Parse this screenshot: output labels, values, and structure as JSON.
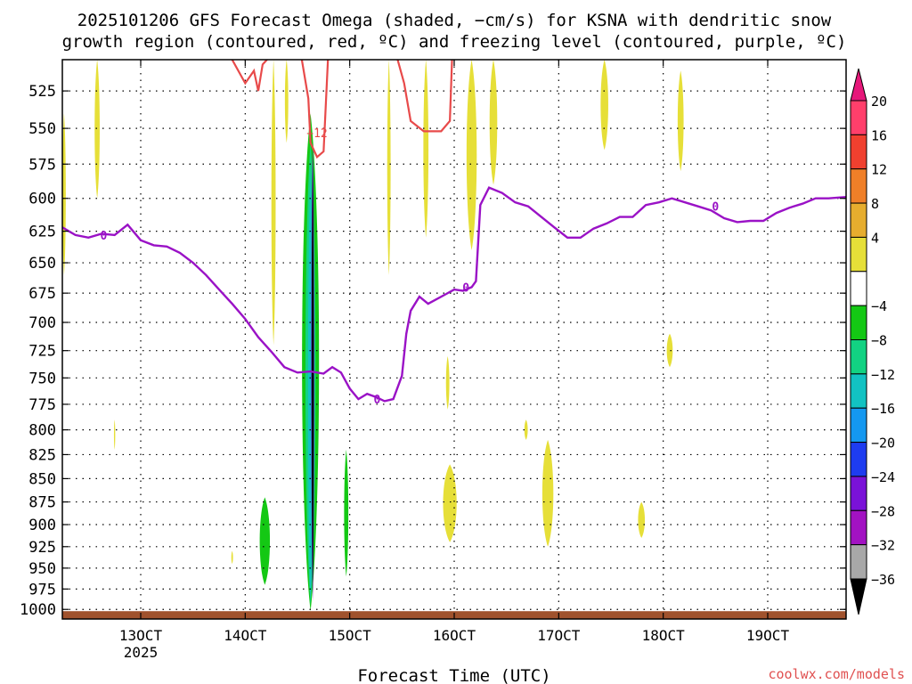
{
  "chart_data": {
    "type": "heatmap",
    "title_line1": "2025101206 GFS Forecast Omega (shaded, −cm/s) for KSNA with dendritic snow",
    "title_line2": "growth region (contoured, red, ºC) and freezing level (contoured, purple, ºC)",
    "xlabel": "Forecast Time (UTC)",
    "credit": "coolwx.com/models",
    "x_ticks": [
      {
        "label": "13OCT",
        "sub": "2025",
        "hour": 18
      },
      {
        "label": "14OCT",
        "sub": "",
        "hour": 42
      },
      {
        "label": "15OCT",
        "sub": "",
        "hour": 66
      },
      {
        "label": "16OCT",
        "sub": "",
        "hour": 90
      },
      {
        "label": "17OCT",
        "sub": "",
        "hour": 114
      },
      {
        "label": "18OCT",
        "sub": "",
        "hour": 138
      },
      {
        "label": "19OCT",
        "sub": "",
        "hour": 162
      }
    ],
    "x_range_hours": [
      0,
      180
    ],
    "y_ticks": [
      525,
      550,
      575,
      600,
      625,
      650,
      675,
      700,
      725,
      750,
      775,
      800,
      825,
      850,
      875,
      900,
      925,
      950,
      975,
      1000
    ],
    "y_range_hpa": [
      505,
      1012
    ],
    "y_scale": "log-pressure",
    "grid": true,
    "colorbar": {
      "labels": [
        "20",
        "16",
        "12",
        "8",
        "4",
        "−4",
        "−8",
        "−12",
        "−16",
        "−20",
        "−24",
        "−28",
        "−32",
        "−36"
      ],
      "colors": [
        "#ff3f6b",
        "#f0402f",
        "#ef7f28",
        "#e6ad2e",
        "#e6df38",
        "#ffffff",
        "#14c814",
        "#12d282",
        "#12c2c2",
        "#1498f0",
        "#1e3cf0",
        "#7a12d8",
        "#a212c2",
        "#a8a8a8"
      ],
      "top_arrow": "#e6187a",
      "bottom_arrow": "#000000"
    },
    "freezing_level_label": "0",
    "dgz_label": "−12",
    "freezing_level_0C": [
      [
        0,
        622
      ],
      [
        3,
        628
      ],
      [
        6,
        630
      ],
      [
        9,
        627
      ],
      [
        12,
        628
      ],
      [
        15,
        620
      ],
      [
        18,
        632
      ],
      [
        21,
        636
      ],
      [
        24,
        637
      ],
      [
        27,
        642
      ],
      [
        30,
        650
      ],
      [
        33,
        660
      ],
      [
        36,
        672
      ],
      [
        39,
        684
      ],
      [
        42,
        697
      ],
      [
        45,
        713
      ],
      [
        48,
        726
      ],
      [
        51,
        740
      ],
      [
        54,
        745
      ],
      [
        57,
        744
      ],
      [
        60,
        746
      ],
      [
        62,
        740
      ],
      [
        64,
        745
      ],
      [
        66,
        760
      ],
      [
        68,
        770
      ],
      [
        70,
        765
      ],
      [
        72,
        768
      ],
      [
        74,
        772
      ],
      [
        76,
        770
      ],
      [
        78,
        748
      ],
      [
        79,
        710
      ],
      [
        80,
        690
      ],
      [
        82,
        678
      ],
      [
        84,
        684
      ],
      [
        86,
        680
      ],
      [
        88,
        676
      ],
      [
        90,
        672
      ],
      [
        92,
        673
      ],
      [
        94,
        670
      ],
      [
        95,
        665
      ],
      [
        96,
        605
      ],
      [
        98,
        592
      ],
      [
        101,
        596
      ],
      [
        104,
        603
      ],
      [
        107,
        606
      ],
      [
        110,
        614
      ],
      [
        113,
        622
      ],
      [
        116,
        630
      ],
      [
        119,
        630
      ],
      [
        122,
        623
      ],
      [
        125,
        619
      ],
      [
        128,
        614
      ],
      [
        131,
        614
      ],
      [
        134,
        605
      ],
      [
        137,
        603
      ],
      [
        140,
        600
      ],
      [
        143,
        603
      ],
      [
        146,
        606
      ],
      [
        149,
        609
      ],
      [
        152,
        615
      ],
      [
        155,
        618
      ],
      [
        158,
        617
      ],
      [
        161,
        617
      ],
      [
        164,
        611
      ],
      [
        167,
        607
      ],
      [
        170,
        604
      ],
      [
        173,
        600
      ],
      [
        176,
        600
      ],
      [
        180,
        599
      ]
    ]
  }
}
